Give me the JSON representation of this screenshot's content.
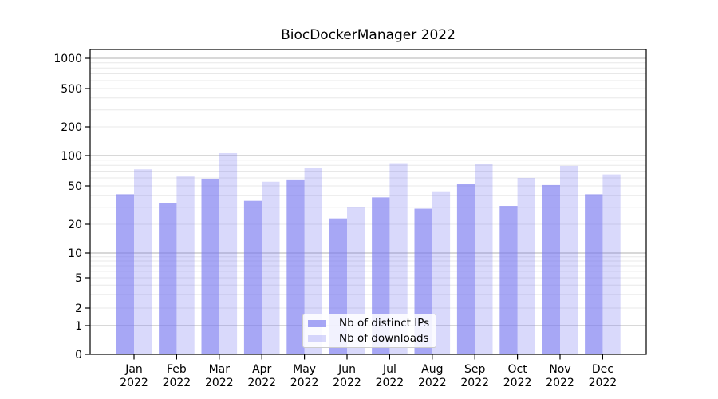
{
  "figure": {
    "background_color": "#ffffff"
  },
  "chart_data": {
    "type": "bar",
    "title": "BiocDockerManager 2022",
    "xlabel": "",
    "ylabel": "",
    "scale": "symlog (linear 0-1, logarithmic above 1)",
    "grid": true,
    "legend_position": "lower center",
    "ylim": [
      0,
      1150
    ],
    "yticks": [
      0,
      1,
      2,
      5,
      10,
      20,
      50,
      100,
      200,
      500,
      1000
    ],
    "categories": [
      "Jan 2022",
      "Feb 2022",
      "Mar 2022",
      "Apr 2022",
      "May 2022",
      "Jun 2022",
      "Jul 2022",
      "Aug 2022",
      "Sep 2022",
      "Oct 2022",
      "Nov 2022",
      "Dec 2022"
    ],
    "series": [
      {
        "name": "Nb of distinct IPs",
        "color": "rgba(120,120,240,0.65)",
        "values": [
          41,
          33,
          59,
          35,
          58,
          23,
          38,
          29,
          52,
          31,
          51,
          41
        ]
      },
      {
        "name": "Nb of downloads",
        "color": "rgba(120,120,240,0.28)",
        "values": [
          73,
          62,
          106,
          55,
          75,
          30,
          84,
          44,
          82,
          60,
          79,
          65
        ]
      }
    ]
  },
  "colors": {
    "major_gridline": "#b0b0b0",
    "minor_gridline": "#e8e8e8",
    "axis_frame": "#000000"
  }
}
